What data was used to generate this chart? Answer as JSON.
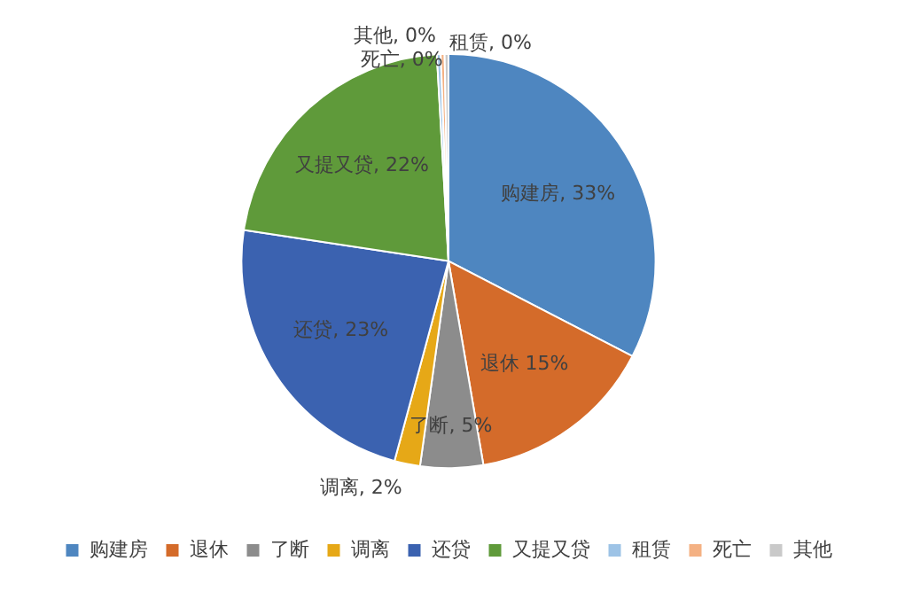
{
  "chart_data": {
    "type": "pie",
    "categories": [
      "购建房",
      "退休",
      "了断",
      "调离",
      "还贷",
      "又提又贷",
      "租赁",
      "死亡",
      "其他"
    ],
    "values": [
      32.6,
      14.7,
      4.9,
      2.0,
      23.2,
      21.7,
      0.3,
      0.3,
      0.3
    ],
    "value_labels": [
      "购建房, 33%",
      "退休 15%",
      "了断, 5%",
      "调离, 2%",
      "还贷, 23%",
      "又提又贷, 22%",
      "租赁, 0%",
      "死亡, 0%",
      "其他, 0%"
    ],
    "colors": [
      "#4e86c0",
      "#d46b2a",
      "#8c8c8c",
      "#e6a817",
      "#3b62b0",
      "#5f9a3a",
      "#9dc3e6",
      "#f4b183",
      "#c9c9c9"
    ],
    "legend": "bottom"
  }
}
